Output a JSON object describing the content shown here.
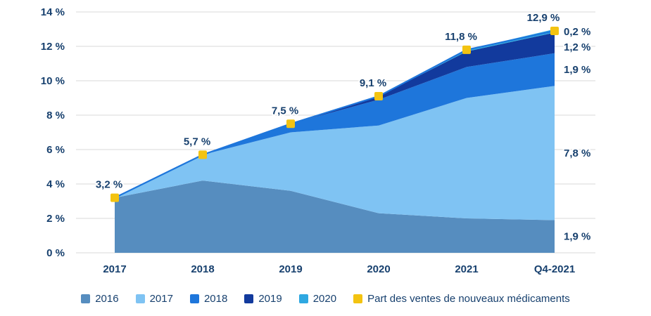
{
  "chart_data": {
    "type": "area",
    "stacked": true,
    "title": "",
    "xlabel": "",
    "ylabel": "",
    "grid": true,
    "legend_position": "bottom",
    "categories": [
      "2017",
      "2018",
      "2019",
      "2020",
      "2021",
      "Q4-2021"
    ],
    "series": [
      {
        "name": "2016",
        "color": "#568dbf",
        "values": [
          3.2,
          4.2,
          3.6,
          2.3,
          2.0,
          1.9
        ]
      },
      {
        "name": "2017",
        "color": "#7fc3f3",
        "values": [
          0,
          1.5,
          3.4,
          5.1,
          7.0,
          7.8
        ]
      },
      {
        "name": "2018",
        "color": "#1e76db",
        "values": [
          0,
          0,
          0.5,
          1.5,
          1.8,
          1.9
        ]
      },
      {
        "name": "2019",
        "color": "#123a9d",
        "values": [
          0,
          0,
          0,
          0.2,
          0.9,
          1.2
        ]
      },
      {
        "name": "2020",
        "color": "#2fa8e1",
        "values": [
          0,
          0,
          0,
          0,
          0.1,
          0.2
        ]
      }
    ],
    "total_series": {
      "name": "Part des ventes de nouveaux médicaments",
      "marker_color": "#f3c311",
      "line_color": "#1e76db",
      "values": [
        3.2,
        5.7,
        7.5,
        9.1,
        11.8,
        12.9
      ],
      "labels": [
        "3,2 %",
        "5,7 %",
        "7,5 %",
        "9,1 %",
        "11,8 %",
        "12,9 %"
      ]
    },
    "right_labels": [
      {
        "text": "0,2 %",
        "series": "2020"
      },
      {
        "text": "1,2 %",
        "series": "2019"
      },
      {
        "text": "1,9 %",
        "series": "2018"
      },
      {
        "text": "7,8 %",
        "series": "2017"
      },
      {
        "text": "1,9 %",
        "series": "2016"
      }
    ],
    "y_axis": {
      "min": 0,
      "max": 14,
      "step": 2,
      "tick_labels": [
        "0 %",
        "2 %",
        "4 %",
        "6 %",
        "8 %",
        "10 %",
        "12 %",
        "14 %"
      ]
    },
    "legend": [
      {
        "label": "2016",
        "color": "#568dbf"
      },
      {
        "label": "2017",
        "color": "#7fc3f3"
      },
      {
        "label": "2018",
        "color": "#1e76db"
      },
      {
        "label": "2019",
        "color": "#123a9d"
      },
      {
        "label": "2020",
        "color": "#2fa8e1"
      },
      {
        "label": "Part des ventes de nouveaux médicaments",
        "color": "#f3c311"
      }
    ]
  }
}
